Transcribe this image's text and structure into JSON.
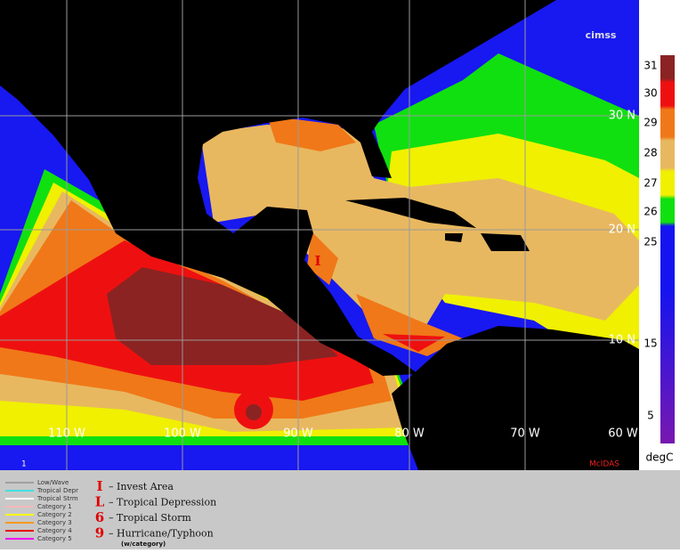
{
  "header": {
    "logo": "cimss"
  },
  "map": {
    "lat_labels": [
      "30 N",
      "20 N",
      "10 N"
    ],
    "lon_labels": [
      "110 W",
      "100 W",
      "90 W",
      "80 W",
      "70 W",
      "60 W"
    ],
    "storm_marker": "I",
    "frame_number": "1",
    "credit": "McIDAS"
  },
  "colorbar": {
    "labels": [
      "31",
      "30",
      "29",
      "28",
      "27",
      "26",
      "25",
      "15",
      "5"
    ],
    "unit": "degC"
  },
  "legend": {
    "tracks": [
      {
        "label": "Low/Wave",
        "color": "#a0a0a0"
      },
      {
        "label": "Tropical Depr",
        "color": "#40e0e0"
      },
      {
        "label": "Tropical Strm",
        "color": "#f8f8f8"
      },
      {
        "label": "Category 1",
        "color": "#f8b8b8"
      },
      {
        "label": "Category 2",
        "color": "#f8f800"
      },
      {
        "label": "Category 3",
        "color": "#f89820"
      },
      {
        "label": "Category 4",
        "color": "#e80000"
      },
      {
        "label": "Category 5",
        "color": "#f000f0"
      }
    ],
    "symbols": [
      {
        "symbol": "I",
        "label": "– Invest Area"
      },
      {
        "symbol": "L",
        "label": "– Tropical Depression"
      },
      {
        "symbol": "6",
        "label": "– Tropical Storm"
      },
      {
        "symbol": "9",
        "label": "– Hurricane/Typhoon"
      }
    ],
    "note": "(w/category)"
  }
}
